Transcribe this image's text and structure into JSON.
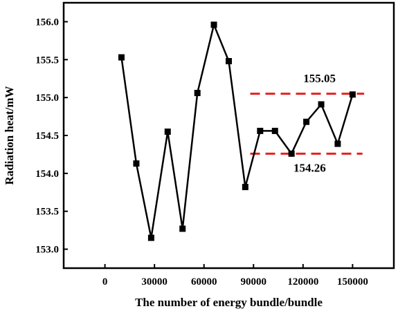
{
  "chart_data": {
    "type": "line",
    "xlabel": "The number of energy bundle/bundle",
    "ylabel": "Radiation heat/mW",
    "xlim": [
      -25000,
      175000
    ],
    "ylim": [
      152.75,
      156.25
    ],
    "x_ticks": [
      0,
      30000,
      60000,
      90000,
      120000,
      150000
    ],
    "x_tick_labels": [
      "0",
      "30000",
      "60000",
      "90000",
      "120000",
      "150000"
    ],
    "y_ticks": [
      153.0,
      153.5,
      154.0,
      154.5,
      155.0,
      155.5,
      156.0
    ],
    "y_tick_labels": [
      "153.0",
      "153.5",
      "154.0",
      "154.5",
      "155.0",
      "155.5",
      "156.0"
    ],
    "grid": false,
    "series": [
      {
        "marker": "square",
        "line_color": "#000000",
        "x": [
          10000,
          19000,
          28000,
          38000,
          47000,
          56000,
          66000,
          75000,
          85000,
          94000,
          103000,
          113000,
          122000,
          131000,
          141000,
          150000
        ],
        "y": [
          155.53,
          154.13,
          153.15,
          154.55,
          153.27,
          155.06,
          155.96,
          155.48,
          153.82,
          154.56,
          154.56,
          154.26,
          154.68,
          154.91,
          154.39,
          155.04
        ]
      }
    ],
    "reference_lines": [
      {
        "y": 155.05,
        "x_start": 88000,
        "x_end": 157000,
        "color": "#e52121",
        "style": "dashed",
        "label": "155.05",
        "label_x": 130000,
        "label_y": 155.2
      },
      {
        "y": 154.26,
        "x_start": 88000,
        "x_end": 156000,
        "color": "#e52121",
        "style": "dashed",
        "label": "154.26",
        "label_x": 124000,
        "label_y": 154.02
      }
    ]
  }
}
